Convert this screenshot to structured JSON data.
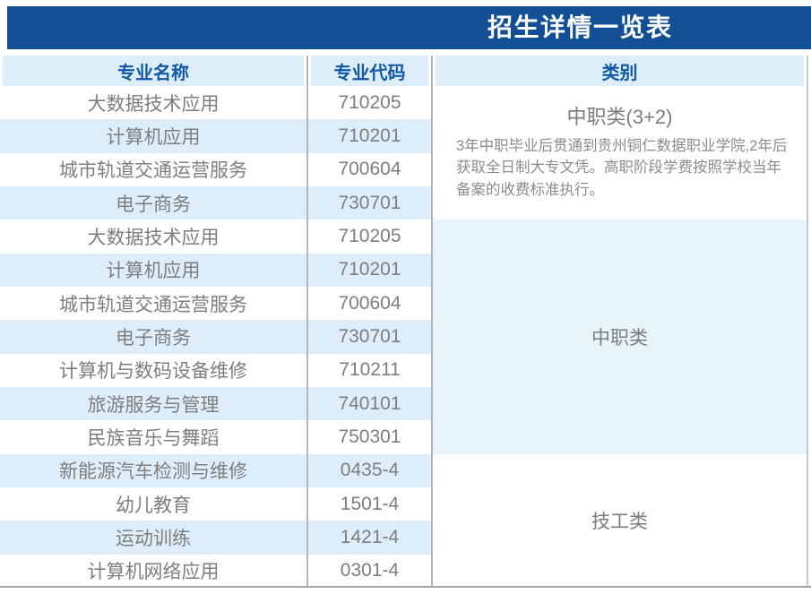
{
  "title": "招生详情一览表",
  "table": {
    "headers": [
      "专业名称",
      "专业代码",
      "类别"
    ],
    "groups": [
      {
        "category": "中职类(3+2)",
        "description": "3年中职毕业后贯通到贵州铜仁数据职业学院,2年后获取全日制大专文凭。高职阶段学费按照学校当年备案的收费标准执行。",
        "tinted": false,
        "rows": [
          {
            "name": "大数据技术应用",
            "code": "710205"
          },
          {
            "name": "计算机应用",
            "code": "710201"
          },
          {
            "name": "城市轨道交通运营服务",
            "code": "700604"
          },
          {
            "name": "电子商务",
            "code": "730701"
          }
        ]
      },
      {
        "category": "中职类",
        "description": "",
        "tinted": true,
        "rows": [
          {
            "name": "大数据技术应用",
            "code": "710205"
          },
          {
            "name": "计算机应用",
            "code": "710201"
          },
          {
            "name": "城市轨道交通运营服务",
            "code": "700604"
          },
          {
            "name": "电子商务",
            "code": "730701"
          },
          {
            "name": "计算机与数码设备维修",
            "code": "710211"
          },
          {
            "name": "旅游服务与管理",
            "code": "740101"
          },
          {
            "name": "民族音乐与舞蹈",
            "code": "750301"
          }
        ]
      },
      {
        "category": "技工类",
        "description": "",
        "tinted": false,
        "rows": [
          {
            "name": "新能源汽车检测与维修",
            "code": "0435-4"
          },
          {
            "name": "幼儿教育",
            "code": "1501-4"
          },
          {
            "name": "运动训练",
            "code": "1421-4"
          },
          {
            "name": "计算机网络应用",
            "code": "0301-4"
          }
        ]
      }
    ]
  },
  "colors": {
    "title_bar": "#124F97",
    "header_bg": "#DEEEF9",
    "header_text": "#1159A6",
    "row_alt": "#DDEDFA",
    "category_tint": "#E8F4FC",
    "body_text": "#7E7E7E",
    "divider": "#B5B5B5"
  }
}
